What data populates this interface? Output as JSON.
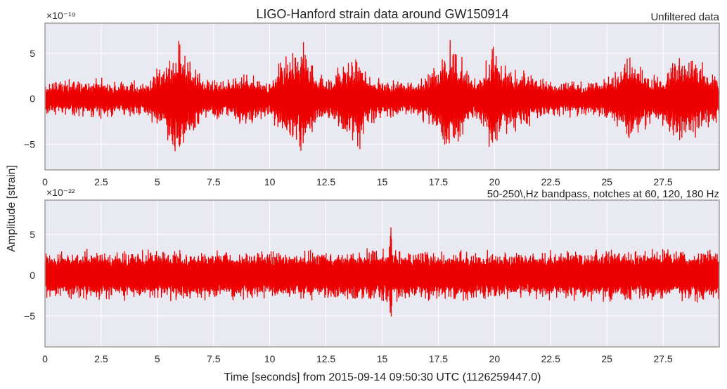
{
  "figure": {
    "title": "LIGO-Hanford strain data around GW150914",
    "ylabel": "Amplitude [strain]",
    "xlabel": "Time [seconds] from 2015-09-14 09:50:30 UTC (1126259447.0)"
  },
  "colors": {
    "series": "#ee0000",
    "axes_bg": "#e9e9f1",
    "grid": "#ffffff",
    "spine": "#9e9e9e"
  },
  "chart_data": [
    {
      "type": "line",
      "panel_title": "Unfiltered data",
      "offset_label": "×10⁻¹⁹",
      "xlim": [
        0,
        30
      ],
      "ylim": [
        -7.8,
        8.3
      ],
      "x_ticks": [
        0,
        2.5,
        5,
        7.5,
        10,
        12.5,
        15,
        17.5,
        20,
        22.5,
        25,
        27.5
      ],
      "x_tick_labels": [
        "0",
        "2.5",
        "5",
        "7.5",
        "10",
        "12.5",
        "15",
        "17.5",
        "20",
        "22.5",
        "25",
        "27.5"
      ],
      "y_ticks": [
        -5,
        0,
        5
      ],
      "y_tick_labels": [
        "−5",
        "0",
        "5"
      ],
      "grid": true,
      "envelope": [
        [
          0,
          2.4
        ],
        [
          0.5,
          2.2
        ],
        [
          1,
          2.3
        ],
        [
          1.5,
          2.1
        ],
        [
          2,
          2.2
        ],
        [
          2.5,
          2.5
        ],
        [
          3,
          2.2
        ],
        [
          3.5,
          2.0
        ],
        [
          4,
          2.2
        ],
        [
          4.5,
          2.1
        ],
        [
          5,
          3.8
        ],
        [
          5.5,
          5.5
        ],
        [
          6,
          7.2
        ],
        [
          6.5,
          4.5
        ],
        [
          7,
          2.8
        ],
        [
          7.5,
          2.6
        ],
        [
          8,
          2.2
        ],
        [
          8.5,
          2.8
        ],
        [
          9,
          3.8
        ],
        [
          9.5,
          2.6
        ],
        [
          10,
          2.3
        ],
        [
          10.5,
          4.5
        ],
        [
          11,
          5.8
        ],
        [
          11.5,
          6.5
        ],
        [
          12,
          3.5
        ],
        [
          12.5,
          2.5
        ],
        [
          13,
          3.8
        ],
        [
          13.5,
          5.0
        ],
        [
          14,
          5.8
        ],
        [
          14.5,
          3.0
        ],
        [
          15,
          2.4
        ],
        [
          15.5,
          2.6
        ],
        [
          16,
          2.3
        ],
        [
          16.5,
          2.2
        ],
        [
          17,
          3.0
        ],
        [
          17.5,
          4.8
        ],
        [
          18,
          6.5
        ],
        [
          18.5,
          5.0
        ],
        [
          19,
          2.8
        ],
        [
          19.5,
          3.5
        ],
        [
          19.9,
          7.6
        ],
        [
          20.3,
          4.2
        ],
        [
          20.8,
          3.8
        ],
        [
          21.5,
          3.2
        ],
        [
          22,
          2.5
        ],
        [
          22.5,
          2.4
        ],
        [
          23,
          2.2
        ],
        [
          23.5,
          2.3
        ],
        [
          24,
          2.2
        ],
        [
          24.5,
          2.3
        ],
        [
          25,
          2.5
        ],
        [
          25.5,
          4.0
        ],
        [
          26,
          5.8
        ],
        [
          26.5,
          4.5
        ],
        [
          27,
          2.6
        ],
        [
          27.5,
          3.5
        ],
        [
          28,
          5.0
        ],
        [
          28.5,
          6.0
        ],
        [
          29,
          4.8
        ],
        [
          29.5,
          3.5
        ],
        [
          30,
          2.8
        ]
      ]
    },
    {
      "type": "line",
      "panel_title": "50-250\\,Hz bandpass, notches at 60, 120, 180 Hz",
      "offset_label": "×10⁻²²",
      "xlim": [
        0,
        30
      ],
      "ylim": [
        -8.8,
        9.2
      ],
      "x_ticks": [
        0,
        2.5,
        5,
        7.5,
        10,
        12.5,
        15,
        17.5,
        20,
        22.5,
        25,
        27.5
      ],
      "x_tick_labels": [
        "0",
        "2.5",
        "5",
        "7.5",
        "10",
        "12.5",
        "15",
        "17.5",
        "20",
        "22.5",
        "25",
        "27.5"
      ],
      "y_ticks": [
        -5,
        0,
        5
      ],
      "y_tick_labels": [
        "−5",
        "0",
        "5"
      ],
      "grid": true,
      "envelope": [
        [
          0,
          3.3
        ],
        [
          3,
          3.2
        ],
        [
          6,
          3.4
        ],
        [
          9,
          3.2
        ],
        [
          12,
          3.3
        ],
        [
          15.3,
          3.4
        ],
        [
          15.4,
          9.0
        ],
        [
          15.45,
          3.4
        ],
        [
          18,
          3.3
        ],
        [
          21,
          3.2
        ],
        [
          24,
          3.3
        ],
        [
          27,
          3.5
        ],
        [
          30,
          3.4
        ]
      ]
    }
  ]
}
